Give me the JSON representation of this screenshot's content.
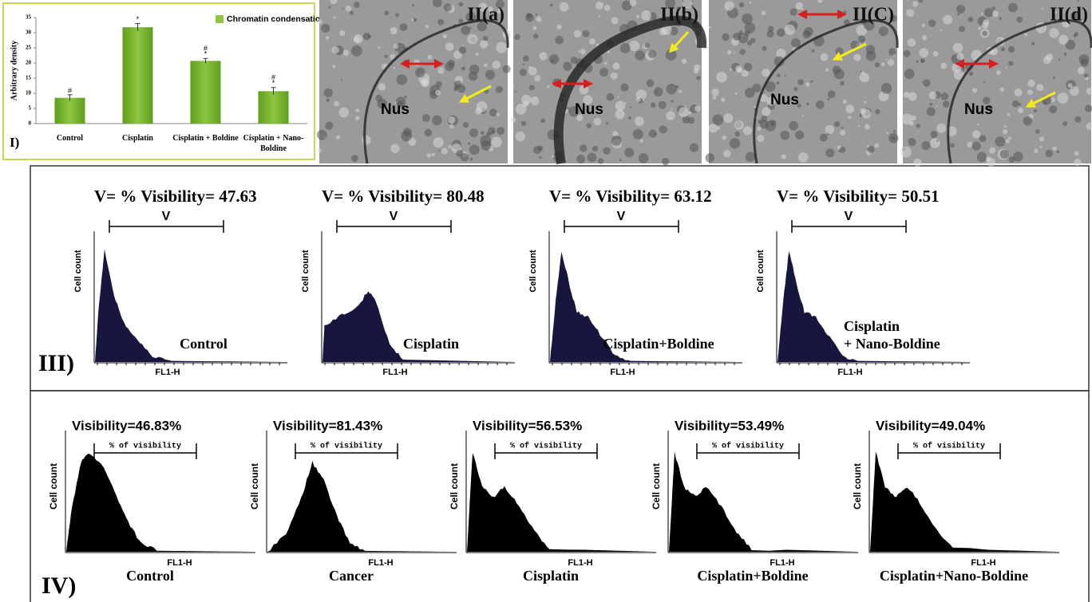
{
  "chart_data": {
    "type": "bar",
    "y_label": "Arbitrary density",
    "panel_label": "I)",
    "legend": "Chromatin condensation",
    "categories": [
      "Control",
      "Cisplatin",
      "Cisplatin + Boldine",
      "Cisplatin + Nano-Boldine"
    ],
    "values": [
      8.5,
      31.8,
      20.7,
      10.7
    ],
    "errors": [
      1,
      1.2,
      0.8,
      1.2
    ],
    "annotations": [
      [
        "#"
      ],
      [
        "*"
      ],
      [
        "#",
        "*"
      ],
      [
        "#",
        "*"
      ]
    ],
    "color": "#8dc63f",
    "ylim": [
      0,
      35
    ],
    "yticks": [
      0,
      5,
      10,
      15,
      20,
      25,
      30,
      35
    ]
  },
  "micrographs": [
    {
      "label": "II(a)",
      "nucleus": "Nus"
    },
    {
      "label": "II(b)",
      "nucleus": "Nus"
    },
    {
      "label": "II(C)",
      "nucleus": "Nus"
    },
    {
      "label": "II(d)",
      "nucleus": "Nus"
    }
  ],
  "panel_iii": {
    "label": "III)",
    "y_label": "Cell count",
    "x_label": "FL1-H",
    "gate": "V",
    "plots": [
      {
        "title": "V= % Visibility= 47.63",
        "name": [
          "Control"
        ]
      },
      {
        "title": "V= % Visibility= 80.48",
        "name": [
          "Cisplatin"
        ]
      },
      {
        "title": "V= % Visibility= 63.12",
        "name": [
          "Cisplatin+Boldine"
        ]
      },
      {
        "title": "V= % Visibility= 50.51",
        "name": [
          "Cisplatin",
          "+ Nano-Boldine"
        ]
      }
    ]
  },
  "panel_iv": {
    "label": "IV)",
    "y_label": "Cell count",
    "x_label": "FL1-H",
    "gate": "% of visibility",
    "plots": [
      {
        "title": "Visibility=46.83%",
        "name": "Control"
      },
      {
        "title": "Visibility=81.43%",
        "name": "Cancer"
      },
      {
        "title": "Visibility=56.53%",
        "name": "Cisplatin"
      },
      {
        "title": "Visibility=53.49%",
        "name": "Cisplatin+Boldine"
      },
      {
        "title": "Visibility=49.04%",
        "name": "Cisplatin+Nano-Boldine"
      }
    ]
  }
}
